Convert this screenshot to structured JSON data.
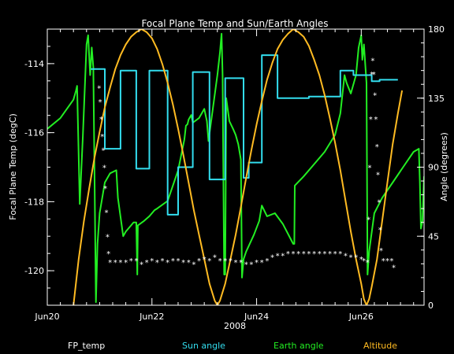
{
  "chart_data": {
    "type": "line",
    "title": "Focal Plane Temp and Sun/Earth Angles",
    "xlabel": "2008",
    "ylabel_left": "Focal Plane Temp (degC)",
    "ylabel_right": "Angle (degrees)",
    "x_ticks": [
      {
        "x": 0,
        "label": "Jun20"
      },
      {
        "x": 2,
        "label": "Jun22"
      },
      {
        "x": 4,
        "label": "Jun24"
      },
      {
        "x": 6,
        "label": "Jun26"
      }
    ],
    "xlim": [
      0,
      7.2
    ],
    "ylim_left": [
      -121,
      -113
    ],
    "y_ticks_left": [
      -114,
      -116,
      -118,
      -120
    ],
    "ylim_right": [
      0,
      180
    ],
    "y_ticks_right": [
      0,
      45,
      90,
      135,
      180
    ],
    "legend_position": "bottom",
    "colors": {
      "fp_temp": "#ffffff",
      "sun_angle": "#33ddee",
      "earth_angle": "#22ee22",
      "altitude": "#ffbb22"
    },
    "series": [
      {
        "name": "FP_temp",
        "axis": "left",
        "marker": "*",
        "points": [
          [
            0.99,
            -114.7
          ],
          [
            1.01,
            -115.1
          ],
          [
            1.03,
            -115.6
          ],
          [
            1.05,
            -116.1
          ],
          [
            1.07,
            -116.5
          ],
          [
            1.09,
            -117.0
          ],
          [
            1.11,
            -117.6
          ],
          [
            1.13,
            -118.3
          ],
          [
            1.15,
            -119.0
          ],
          [
            1.17,
            -119.5
          ],
          [
            1.2,
            -119.75
          ],
          [
            1.3,
            -119.75
          ],
          [
            1.4,
            -119.75
          ],
          [
            1.5,
            -119.75
          ],
          [
            1.6,
            -119.7
          ],
          [
            1.7,
            -119.7
          ],
          [
            1.8,
            -119.8
          ],
          [
            1.9,
            -119.75
          ],
          [
            2.0,
            -119.7
          ],
          [
            2.1,
            -119.75
          ],
          [
            2.2,
            -119.7
          ],
          [
            2.3,
            -119.75
          ],
          [
            2.4,
            -119.7
          ],
          [
            2.5,
            -119.7
          ],
          [
            2.6,
            -119.75
          ],
          [
            2.7,
            -119.75
          ],
          [
            2.8,
            -119.8
          ],
          [
            2.9,
            -119.7
          ],
          [
            3.0,
            -119.65
          ],
          [
            3.1,
            -119.7
          ],
          [
            3.2,
            -119.6
          ],
          [
            3.3,
            -119.7
          ],
          [
            3.4,
            -119.7
          ],
          [
            3.5,
            -119.7
          ],
          [
            3.6,
            -119.75
          ],
          [
            3.7,
            -119.75
          ],
          [
            3.8,
            -119.8
          ],
          [
            3.9,
            -119.8
          ],
          [
            4.0,
            -119.75
          ],
          [
            4.1,
            -119.75
          ],
          [
            4.2,
            -119.7
          ],
          [
            4.3,
            -119.6
          ],
          [
            4.4,
            -119.55
          ],
          [
            4.5,
            -119.55
          ],
          [
            4.6,
            -119.5
          ],
          [
            4.7,
            -119.5
          ],
          [
            4.8,
            -119.5
          ],
          [
            4.9,
            -119.5
          ],
          [
            5.0,
            -119.5
          ],
          [
            5.1,
            -119.5
          ],
          [
            5.2,
            -119.5
          ],
          [
            5.3,
            -119.5
          ],
          [
            5.4,
            -119.5
          ],
          [
            5.5,
            -119.5
          ],
          [
            5.6,
            -119.5
          ],
          [
            5.7,
            -119.55
          ],
          [
            5.8,
            -119.6
          ],
          [
            5.9,
            -119.6
          ],
          [
            6.0,
            -119.65
          ],
          [
            6.05,
            -119.7
          ],
          [
            6.12,
            -119.75
          ],
          [
            6.14,
            -118.5
          ],
          [
            6.16,
            -117.0
          ],
          [
            6.18,
            -115.6
          ],
          [
            6.2,
            -114.3
          ],
          [
            6.22,
            -113.9
          ],
          [
            6.24,
            -114.3
          ],
          [
            6.26,
            -114.9
          ],
          [
            6.28,
            -115.6
          ],
          [
            6.3,
            -116.4
          ],
          [
            6.32,
            -117.2
          ],
          [
            6.34,
            -118.0
          ],
          [
            6.36,
            -118.8
          ],
          [
            6.38,
            -119.4
          ],
          [
            6.42,
            -119.7
          ],
          [
            6.5,
            -119.7
          ],
          [
            6.58,
            -119.7
          ],
          [
            6.62,
            -119.9
          ]
        ]
      },
      {
        "name": "Sun angle",
        "axis": "right",
        "points": [
          [
            0.83,
            154
          ],
          [
            1.1,
            154
          ],
          [
            1.1,
            102
          ],
          [
            1.4,
            102
          ],
          [
            1.4,
            153
          ],
          [
            1.7,
            153
          ],
          [
            1.7,
            89
          ],
          [
            1.95,
            89
          ],
          [
            1.95,
            153
          ],
          [
            2.3,
            153
          ],
          [
            2.3,
            59
          ],
          [
            2.5,
            59
          ],
          [
            2.5,
            90
          ],
          [
            2.78,
            90
          ],
          [
            2.78,
            152
          ],
          [
            3.1,
            152
          ],
          [
            3.1,
            82
          ],
          [
            3.4,
            82
          ],
          [
            3.4,
            148
          ],
          [
            3.75,
            148
          ],
          [
            3.75,
            83
          ],
          [
            3.85,
            83
          ],
          [
            3.85,
            93
          ],
          [
            4.1,
            93
          ],
          [
            4.1,
            163
          ],
          [
            4.4,
            163
          ],
          [
            4.4,
            135
          ],
          [
            5.0,
            135
          ],
          [
            5.0,
            136
          ],
          [
            5.6,
            136
          ],
          [
            5.6,
            153
          ],
          [
            5.85,
            153
          ],
          [
            5.85,
            150
          ],
          [
            6.2,
            150
          ],
          [
            6.2,
            146
          ],
          [
            6.35,
            146
          ],
          [
            6.35,
            147
          ],
          [
            6.7,
            147
          ]
        ]
      },
      {
        "name": "Earth angle",
        "axis": "right",
        "points": [
          [
            0.0,
            115
          ],
          [
            0.25,
            122
          ],
          [
            0.5,
            134
          ],
          [
            0.55,
            140
          ],
          [
            0.57,
            143
          ],
          [
            0.62,
            66
          ],
          [
            0.68,
            110
          ],
          [
            0.75,
            170
          ],
          [
            0.78,
            176
          ],
          [
            0.82,
            150
          ],
          [
            0.85,
            168
          ],
          [
            0.88,
            155
          ],
          [
            0.93,
            2
          ],
          [
            0.96,
            40
          ],
          [
            1.0,
            60
          ],
          [
            1.1,
            80
          ],
          [
            1.2,
            86
          ],
          [
            1.32,
            88
          ],
          [
            1.35,
            70
          ],
          [
            1.45,
            45
          ],
          [
            1.5,
            48
          ],
          [
            1.55,
            50
          ],
          [
            1.6,
            52
          ],
          [
            1.65,
            54
          ],
          [
            1.7,
            54
          ],
          [
            1.72,
            20
          ],
          [
            1.73,
            52
          ],
          [
            1.85,
            55
          ],
          [
            1.95,
            58
          ],
          [
            2.05,
            62
          ],
          [
            2.1,
            63
          ],
          [
            2.3,
            68
          ],
          [
            2.5,
            88
          ],
          [
            2.62,
            108
          ],
          [
            2.65,
            117
          ],
          [
            2.68,
            118
          ],
          [
            2.7,
            121
          ],
          [
            2.75,
            124
          ],
          [
            2.78,
            119
          ],
          [
            2.9,
            122
          ],
          [
            3.0,
            128
          ],
          [
            3.05,
            120
          ],
          [
            3.08,
            107
          ],
          [
            3.25,
            150
          ],
          [
            3.3,
            165
          ],
          [
            3.33,
            177
          ],
          [
            3.35,
            150
          ],
          [
            3.38,
            20
          ],
          [
            3.4,
            20
          ],
          [
            3.42,
            135
          ],
          [
            3.48,
            120
          ],
          [
            3.55,
            115
          ],
          [
            3.6,
            111
          ],
          [
            3.65,
            105
          ],
          [
            3.7,
            95
          ],
          [
            3.72,
            18
          ],
          [
            3.75,
            30
          ],
          [
            3.8,
            35
          ],
          [
            3.95,
            46
          ],
          [
            4.05,
            55
          ],
          [
            4.1,
            65
          ],
          [
            4.2,
            58
          ],
          [
            4.35,
            60
          ],
          [
            4.5,
            53
          ],
          [
            4.7,
            40
          ],
          [
            4.72,
            40
          ],
          [
            4.73,
            78
          ],
          [
            4.9,
            84
          ],
          [
            5.1,
            92
          ],
          [
            5.3,
            100
          ],
          [
            5.5,
            111
          ],
          [
            5.6,
            125
          ],
          [
            5.68,
            150
          ],
          [
            5.72,
            145
          ],
          [
            5.8,
            138
          ],
          [
            5.9,
            150
          ],
          [
            5.95,
            168
          ],
          [
            6.0,
            176
          ],
          [
            6.02,
            160
          ],
          [
            6.05,
            170
          ],
          [
            6.1,
            145
          ],
          [
            6.12,
            20
          ],
          [
            6.15,
            35
          ],
          [
            6.25,
            60
          ],
          [
            6.4,
            70
          ],
          [
            6.6,
            80
          ],
          [
            6.8,
            90
          ],
          [
            7.0,
            100
          ],
          [
            7.1,
            102
          ],
          [
            7.12,
            80
          ],
          [
            7.14,
            50
          ],
          [
            7.17,
            55
          ],
          [
            7.2,
            84
          ]
        ]
      },
      {
        "name": "Altitude",
        "axis": "right",
        "points": [
          [
            0.5,
            0
          ],
          [
            0.6,
            30
          ],
          [
            0.7,
            55
          ],
          [
            0.8,
            76
          ],
          [
            0.9,
            96
          ],
          [
            1.0,
            113
          ],
          [
            1.1,
            129
          ],
          [
            1.2,
            142
          ],
          [
            1.3,
            154
          ],
          [
            1.4,
            163
          ],
          [
            1.5,
            170
          ],
          [
            1.6,
            175
          ],
          [
            1.7,
            178
          ],
          [
            1.8,
            180
          ],
          [
            1.9,
            178
          ],
          [
            2.0,
            174
          ],
          [
            2.1,
            167
          ],
          [
            2.2,
            157
          ],
          [
            2.3,
            145
          ],
          [
            2.4,
            131
          ],
          [
            2.5,
            115
          ],
          [
            2.6,
            98
          ],
          [
            2.7,
            80
          ],
          [
            2.8,
            62
          ],
          [
            2.9,
            46
          ],
          [
            3.0,
            30
          ],
          [
            3.1,
            14
          ],
          [
            3.2,
            3
          ],
          [
            3.25,
            0
          ],
          [
            3.3,
            3
          ],
          [
            3.4,
            14
          ],
          [
            3.5,
            30
          ],
          [
            3.6,
            46
          ],
          [
            3.7,
            64
          ],
          [
            3.8,
            83
          ],
          [
            3.9,
            101
          ],
          [
            4.0,
            118
          ],
          [
            4.1,
            133
          ],
          [
            4.2,
            147
          ],
          [
            4.3,
            158
          ],
          [
            4.4,
            167
          ],
          [
            4.5,
            173
          ],
          [
            4.6,
            177
          ],
          [
            4.7,
            180
          ],
          [
            4.8,
            178
          ],
          [
            4.9,
            175
          ],
          [
            5.0,
            169
          ],
          [
            5.1,
            160
          ],
          [
            5.2,
            150
          ],
          [
            5.3,
            137
          ],
          [
            5.4,
            122
          ],
          [
            5.5,
            106
          ],
          [
            5.6,
            88
          ],
          [
            5.7,
            68
          ],
          [
            5.8,
            48
          ],
          [
            5.9,
            30
          ],
          [
            6.0,
            14
          ],
          [
            6.05,
            4
          ],
          [
            6.1,
            0
          ],
          [
            6.15,
            4
          ],
          [
            6.2,
            12
          ],
          [
            6.3,
            30
          ],
          [
            6.4,
            55
          ],
          [
            6.5,
            80
          ],
          [
            6.6,
            105
          ],
          [
            6.7,
            125
          ],
          [
            6.78,
            140
          ]
        ]
      }
    ]
  }
}
